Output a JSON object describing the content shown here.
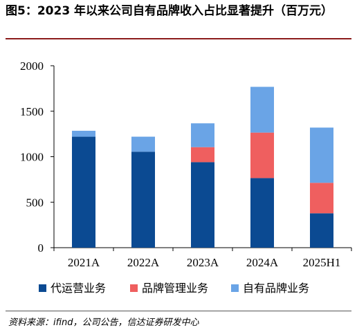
{
  "title": "图5：2023 年以来公司自有品牌收入占比显著提升（百万元）",
  "source": "资料来源：ifind，公司公告，信达证券研发中心",
  "chart_data": {
    "type": "bar",
    "stacked": true,
    "categories": [
      "2021A",
      "2022A",
      "2023A",
      "2024A",
      "2025H1"
    ],
    "series": [
      {
        "name": "代运营业务",
        "color": "#0b4a92",
        "values": [
          1220,
          1055,
          940,
          765,
          378
        ]
      },
      {
        "name": "品牌管理业务",
        "color": "#ef5f5f",
        "values": [
          0,
          0,
          165,
          500,
          335
        ]
      },
      {
        "name": "自有品牌业务",
        "color": "#6aa4e6",
        "values": [
          65,
          165,
          262,
          503,
          607
        ]
      }
    ],
    "yticks": [
      "0",
      "500",
      "1000",
      "1500",
      "2000"
    ],
    "ylim": [
      0,
      2000
    ],
    "grid": false,
    "legend_position": "bottom"
  }
}
